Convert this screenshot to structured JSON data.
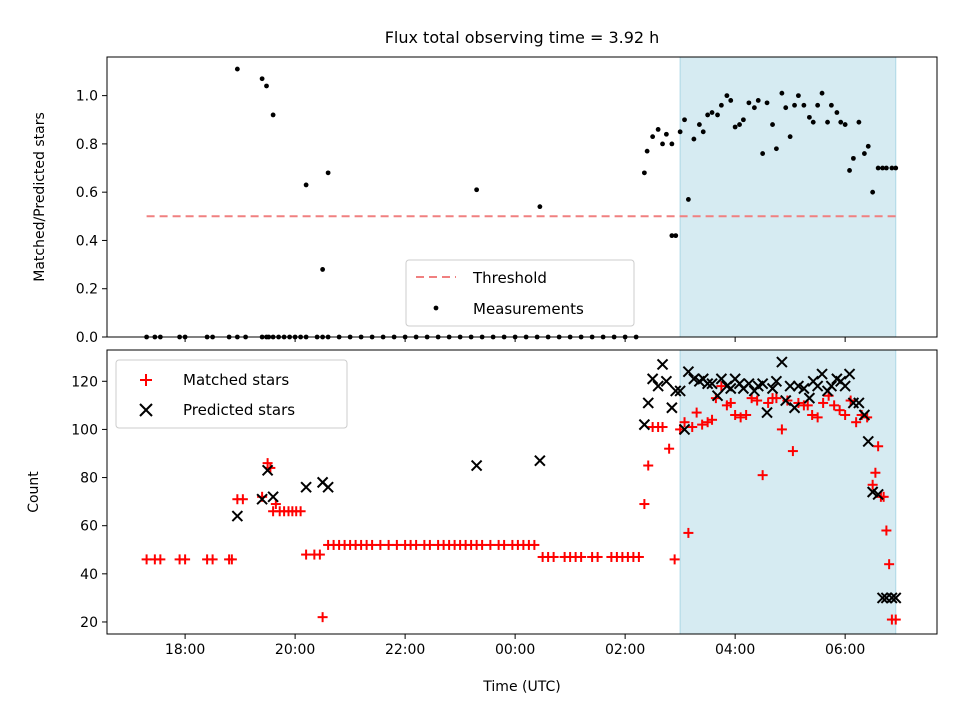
{
  "figure": {
    "title": "Flux total observing time = 3.92 h",
    "xlabel": "Time (UTC)",
    "x_tick_labels": [
      {
        "hour": 18,
        "label": "18:00"
      },
      {
        "hour": 20,
        "label": "20:00"
      },
      {
        "hour": 22,
        "label": "22:00"
      },
      {
        "hour": 24,
        "label": "00:00"
      },
      {
        "hour": 26,
        "label": "02:00"
      },
      {
        "hour": 28,
        "label": "04:00"
      },
      {
        "hour": 30,
        "label": "06:00"
      }
    ],
    "x_range_hours": [
      16.58,
      31.67
    ],
    "highlight_span_hours": [
      27.0,
      30.92
    ],
    "colors": {
      "threshold": "#f08080",
      "measurements": "#000000",
      "matched": "#ff0000",
      "predicted": "#000000",
      "highlight": "#add8e6"
    }
  },
  "chart_data": [
    {
      "type": "scatter",
      "ylabel": "Matched/Predicted stars",
      "ylim": [
        0,
        1.16
      ],
      "yticks": [
        "0.0",
        "0.2",
        "0.4",
        "0.6",
        "0.8",
        "1.0"
      ],
      "ytick_values": [
        0,
        0.2,
        0.4,
        0.6,
        0.8,
        1.0
      ],
      "legend": {
        "location": "lower-center",
        "entries": [
          "Threshold",
          "Measurements"
        ]
      },
      "threshold": {
        "name": "Threshold",
        "value": 0.5,
        "x_range_hours": [
          17.3,
          30.92
        ]
      },
      "series": [
        {
          "name": "Measurements",
          "x_hours": [
            17.3,
            17.45,
            17.55,
            17.9,
            18.0,
            18.4,
            18.5,
            18.8,
            18.95,
            19.1,
            19.4,
            19.48,
            19.52,
            19.6,
            19.7,
            19.8,
            19.9,
            20.0,
            20.1,
            20.2,
            20.4,
            20.5,
            20.6,
            20.8,
            21.0,
            21.2,
            21.4,
            21.6,
            21.8,
            22.0,
            22.2,
            22.4,
            22.6,
            22.8,
            23.0,
            23.2,
            23.4,
            23.6,
            23.8,
            24.0,
            24.2,
            24.4,
            24.6,
            24.8,
            25.0,
            25.2,
            25.4,
            25.6,
            25.8,
            26.0,
            26.2,
            26.35,
            26.4,
            26.5,
            26.6,
            26.68,
            26.75,
            26.85,
            26.92,
            27.0,
            27.08,
            27.15,
            27.25,
            27.35,
            27.42,
            27.5,
            27.58,
            27.68,
            27.75,
            27.85,
            27.92,
            28.0,
            28.08,
            28.15,
            28.25,
            28.35,
            28.42,
            28.5,
            28.58,
            28.68,
            28.75,
            28.85,
            28.92,
            29.0,
            29.08,
            29.15,
            29.25,
            29.35,
            29.42,
            29.5,
            29.58,
            29.68,
            29.75,
            29.85,
            29.92,
            30.0,
            30.08,
            30.15,
            30.25,
            30.35,
            30.42,
            30.5,
            30.6,
            30.68,
            30.75,
            30.85,
            30.92,
            18.95,
            19.4,
            19.48,
            19.6,
            20.2,
            20.5,
            20.6,
            23.3,
            24.45,
            26.85
          ],
          "y": [
            0,
            0,
            0,
            0,
            0,
            0,
            0,
            0,
            0,
            0,
            0,
            0,
            0,
            0,
            0,
            0,
            0,
            0,
            0,
            0,
            0,
            0,
            0,
            0,
            0,
            0,
            0,
            0,
            0,
            0,
            0,
            0,
            0,
            0,
            0,
            0,
            0,
            0,
            0,
            0,
            0,
            0,
            0,
            0,
            0,
            0,
            0,
            0,
            0,
            0,
            0,
            0.68,
            0.77,
            0.83,
            0.86,
            0.8,
            0.84,
            0.8,
            0.42,
            0.85,
            0.9,
            0.57,
            0.82,
            0.88,
            0.85,
            0.92,
            0.93,
            0.92,
            0.96,
            1.0,
            0.98,
            0.87,
            0.88,
            0.9,
            0.97,
            0.95,
            0.98,
            0.76,
            0.97,
            0.88,
            0.78,
            1.01,
            0.95,
            0.83,
            0.96,
            1.0,
            0.96,
            0.91,
            0.89,
            0.96,
            1.01,
            0.89,
            0.96,
            0.93,
            0.89,
            0.88,
            0.69,
            0.74,
            0.89,
            0.76,
            0.79,
            0.6,
            0.7,
            0.7,
            0.7,
            0.7,
            0.7,
            1.11,
            1.07,
            1.04,
            0.92,
            0.63,
            0.28,
            0.68,
            0.61,
            0.54,
            0.42
          ]
        }
      ]
    },
    {
      "type": "scatter",
      "ylabel": "Count",
      "xlabel": "Time (UTC)",
      "ylim": [
        15,
        133
      ],
      "yticks": [
        "20",
        "40",
        "60",
        "80",
        "100",
        "120"
      ],
      "ytick_values": [
        20,
        40,
        60,
        80,
        100,
        120
      ],
      "legend": {
        "location": "upper-left",
        "entries": [
          "Matched stars",
          "Predicted stars"
        ]
      },
      "series": [
        {
          "name": "Matched stars",
          "marker": "plus",
          "x_hours": [
            17.3,
            17.45,
            17.55,
            17.9,
            18.0,
            18.4,
            18.5,
            18.8,
            18.85,
            18.95,
            19.05,
            19.4,
            19.5,
            19.55,
            19.6,
            19.65,
            19.72,
            19.8,
            19.88,
            19.95,
            20.02,
            20.1,
            20.2,
            20.35,
            20.45,
            20.5,
            20.6,
            20.7,
            20.8,
            20.9,
            21.0,
            21.1,
            21.2,
            21.3,
            21.4,
            21.55,
            21.7,
            21.85,
            22.0,
            22.1,
            22.2,
            22.35,
            22.45,
            22.6,
            22.7,
            22.8,
            22.9,
            23.0,
            23.1,
            23.2,
            23.3,
            23.4,
            23.55,
            23.7,
            23.8,
            23.95,
            24.05,
            24.15,
            24.25,
            24.35,
            24.5,
            24.6,
            24.7,
            24.9,
            25.0,
            25.1,
            25.2,
            25.4,
            25.5,
            25.75,
            25.85,
            25.95,
            26.05,
            26.15,
            26.25,
            26.35,
            26.42,
            26.5,
            26.6,
            26.68,
            26.8,
            26.9,
            27.0,
            27.08,
            27.15,
            27.22,
            27.3,
            27.4,
            27.5,
            27.58,
            27.65,
            27.75,
            27.85,
            27.92,
            28.0,
            28.1,
            28.2,
            28.3,
            28.4,
            28.5,
            28.6,
            28.68,
            28.75,
            28.85,
            28.95,
            29.05,
            29.15,
            29.25,
            29.32,
            29.4,
            29.5,
            29.6,
            29.7,
            29.8,
            29.9,
            30.0,
            30.1,
            30.2,
            30.3,
            30.4,
            30.5,
            30.55,
            30.6,
            30.65,
            30.7,
            30.75,
            30.8,
            30.85,
            30.92
          ],
          "y": [
            46,
            46,
            46,
            46,
            46,
            46,
            46,
            46,
            46,
            71,
            71,
            72,
            86,
            84,
            66,
            69,
            66,
            66,
            66,
            66,
            66,
            66,
            48,
            48,
            48,
            22,
            52,
            52,
            52,
            52,
            52,
            52,
            52,
            52,
            52,
            52,
            52,
            52,
            52,
            52,
            52,
            52,
            52,
            52,
            52,
            52,
            52,
            52,
            52,
            52,
            52,
            52,
            52,
            52,
            52,
            52,
            52,
            52,
            52,
            52,
            47,
            47,
            47,
            47,
            47,
            47,
            47,
            47,
            47,
            47,
            47,
            47,
            47,
            47,
            47,
            69,
            85,
            101,
            101,
            101,
            92,
            46,
            100,
            103,
            57,
            101,
            107,
            102,
            103,
            104,
            113,
            118,
            110,
            111,
            106,
            105,
            106,
            113,
            112,
            81,
            111,
            113,
            113,
            100,
            112,
            91,
            111,
            110,
            110,
            106,
            105,
            111,
            114,
            110,
            108,
            106,
            112,
            103,
            106,
            105,
            77,
            82,
            93,
            72,
            72,
            58,
            44,
            21,
            21
          ]
        },
        {
          "name": "Predicted stars",
          "marker": "x",
          "x_hours": [
            18.95,
            19.4,
            19.5,
            19.6,
            20.2,
            20.5,
            20.6,
            23.3,
            24.45,
            26.35,
            26.42,
            26.5,
            26.6,
            26.68,
            26.75,
            26.85,
            26.92,
            27.0,
            27.08,
            27.15,
            27.25,
            27.35,
            27.42,
            27.5,
            27.58,
            27.68,
            27.75,
            27.85,
            27.92,
            28.0,
            28.08,
            28.15,
            28.25,
            28.35,
            28.42,
            28.5,
            28.58,
            28.68,
            28.75,
            28.85,
            28.92,
            29.0,
            29.08,
            29.15,
            29.25,
            29.35,
            29.42,
            29.5,
            29.58,
            29.68,
            29.75,
            29.85,
            29.92,
            30.0,
            30.08,
            30.15,
            30.25,
            30.35,
            30.42,
            30.5,
            30.6,
            30.68,
            30.75,
            30.85,
            30.92
          ],
          "y": [
            64,
            71,
            83,
            72,
            76,
            78,
            76,
            85,
            87,
            102,
            111,
            121,
            118,
            127,
            120,
            109,
            116,
            116,
            100,
            124,
            121,
            120,
            121,
            119,
            119,
            114,
            121,
            118,
            117,
            121,
            119,
            117,
            119,
            116,
            118,
            119,
            107,
            117,
            120,
            128,
            112,
            118,
            109,
            118,
            117,
            113,
            120,
            118,
            123,
            116,
            118,
            121,
            120,
            118,
            123,
            111,
            111,
            106,
            95,
            74,
            73,
            30,
            30,
            30,
            30
          ]
        }
      ]
    }
  ]
}
